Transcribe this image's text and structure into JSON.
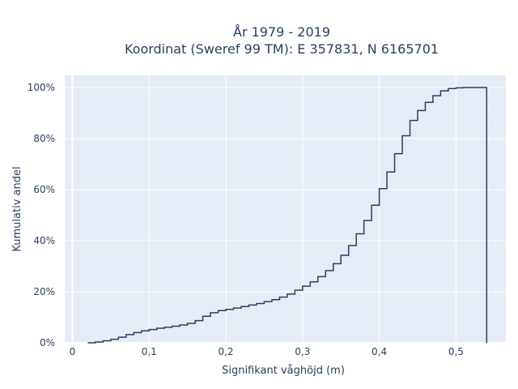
{
  "chart_data": {
    "type": "line",
    "step": true,
    "title": "År 1979 - 2019",
    "subtitle": "Koordinat (Sweref 99 TM): E 357831, N 6165701",
    "xlabel": "Signifikant våghöjd (m)",
    "ylabel": "Kumulativ andel",
    "xlim": [
      -0.01,
      0.565
    ],
    "ylim": [
      0,
      1.05
    ],
    "x_ticks": [
      0,
      0.1,
      0.2,
      0.3,
      0.4,
      0.5
    ],
    "x_tick_labels": [
      "0",
      "0,1",
      "0,2",
      "0,3",
      "0,4",
      "0,5"
    ],
    "y_ticks": [
      0,
      0.2,
      0.4,
      0.6,
      0.8,
      1.0
    ],
    "y_tick_labels": [
      "0%",
      "20%",
      "40%",
      "60%",
      "80%",
      "100%"
    ],
    "grid": true,
    "line_color": "#2a3f5f",
    "background": "#e5ecf6",
    "x": [
      0.02,
      0.03,
      0.04,
      0.05,
      0.06,
      0.07,
      0.08,
      0.09,
      0.1,
      0.11,
      0.12,
      0.13,
      0.14,
      0.15,
      0.16,
      0.17,
      0.18,
      0.19,
      0.2,
      0.21,
      0.22,
      0.23,
      0.24,
      0.25,
      0.26,
      0.27,
      0.28,
      0.29,
      0.3,
      0.31,
      0.32,
      0.33,
      0.34,
      0.35,
      0.36,
      0.37,
      0.38,
      0.39,
      0.4,
      0.41,
      0.42,
      0.43,
      0.44,
      0.45,
      0.46,
      0.47,
      0.48,
      0.49,
      0.5,
      0.51,
      0.52,
      0.53,
      0.54
    ],
    "y": [
      0.0,
      0.003,
      0.008,
      0.014,
      0.022,
      0.032,
      0.04,
      0.047,
      0.052,
      0.057,
      0.061,
      0.065,
      0.07,
      0.076,
      0.087,
      0.104,
      0.118,
      0.126,
      0.131,
      0.136,
      0.142,
      0.148,
      0.154,
      0.161,
      0.169,
      0.179,
      0.191,
      0.206,
      0.222,
      0.239,
      0.259,
      0.283,
      0.31,
      0.343,
      0.381,
      0.427,
      0.479,
      0.539,
      0.604,
      0.669,
      0.741,
      0.811,
      0.871,
      0.91,
      0.942,
      0.968,
      0.987,
      0.996,
      0.999,
      1.0,
      1.0,
      1.0,
      1.0
    ]
  }
}
